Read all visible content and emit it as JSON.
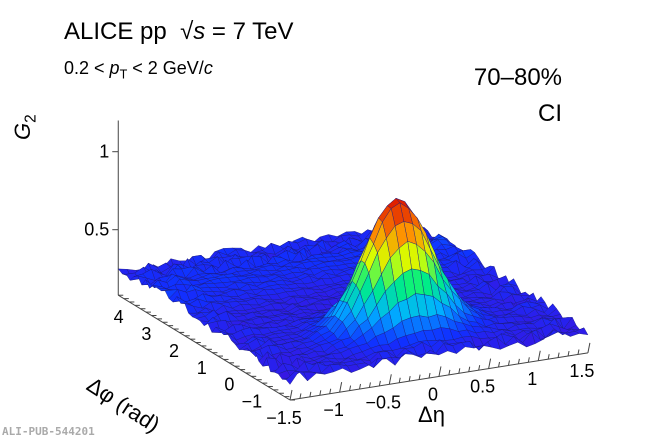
{
  "header": {
    "title_prefix": "ALICE pp",
    "title_sqrt": "√",
    "title_s": "s",
    "title_suffix": " = 7 TeV",
    "subtitle_prefix": "0.2 < ",
    "subtitle_p": "p",
    "subtitle_T": "T",
    "subtitle_mid": " < 2 GeV/",
    "subtitle_c": "c",
    "centrality": "70–80%",
    "label": "CI"
  },
  "watermark": "ALI-PUB-544201",
  "chart_data": {
    "type": "surface",
    "title": "",
    "xlabel": "Δη",
    "ylabel": "Δφ (rad)",
    "zlabel": "G",
    "zlabel_sub": "2",
    "xlim": [
      -1.5,
      1.5
    ],
    "ylim": [
      -1.5,
      4.7
    ],
    "zlim": [
      0.08,
      1.2
    ],
    "xticks": [
      "−1.5",
      "−1",
      "−0.5",
      "0",
      "0.5",
      "1",
      "1.5"
    ],
    "xtick_values": [
      -1.5,
      -1,
      -0.5,
      0,
      0.5,
      1,
      1.5
    ],
    "yticks": [
      "−1",
      "0",
      "1",
      "2",
      "3",
      "4"
    ],
    "ytick_values": [
      -1,
      0,
      1,
      2,
      3,
      4
    ],
    "zticks": [
      "0.5",
      "1"
    ],
    "ztick_values": [
      0.5,
      1
    ],
    "model": {
      "baseline": 0.22,
      "near_side_peak_amplitude": 0.83,
      "near_side_peak_center": [
        0,
        0
      ],
      "near_side_width_deta": 0.33,
      "near_side_width_dphi": 0.45,
      "away_side_ridge_amplitude": 0.05
    },
    "palette": [
      "#5a00c8",
      "#1030ff",
      "#00b4ff",
      "#00f080",
      "#d8ff00",
      "#ff9000",
      "#e02000"
    ],
    "grid": false
  }
}
